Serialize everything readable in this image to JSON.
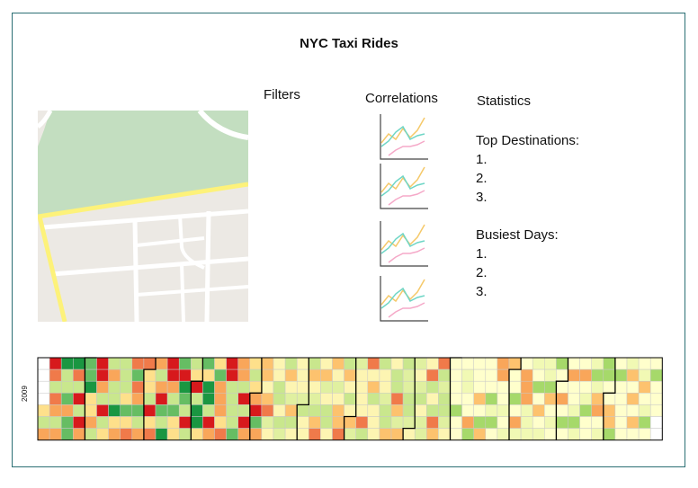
{
  "app": {
    "title": "NYC Taxi Rides"
  },
  "sections": {
    "filters": "Filters",
    "correlations": "Correlations",
    "statistics": "Statistics"
  },
  "statistics": {
    "top_destinations_label": "Top Destinations:",
    "top_destinations": [
      "1.",
      "2.",
      "3."
    ],
    "busiest_days_label": "Busiest Days:",
    "busiest_days": [
      "1.",
      "2.",
      "3."
    ]
  },
  "correlation_charts": [
    {
      "name": "correlation-chart-1"
    },
    {
      "name": "correlation-chart-2"
    },
    {
      "name": "correlation-chart-3"
    },
    {
      "name": "correlation-chart-4"
    }
  ],
  "calendar": {
    "year": "2009"
  },
  "colors": {
    "frame_border": "#2b6f74",
    "map_park": "#c3dec0",
    "map_land": "#ece9e4",
    "map_highway": "#fdf27a",
    "spark_orange": "#f5c96a",
    "spark_teal": "#6fd6c6",
    "spark_pink": "#f5a9c8",
    "heat_low": "#ffffcc",
    "heat_high_red": "#d7191c",
    "heat_high_green": "#1a9641"
  }
}
